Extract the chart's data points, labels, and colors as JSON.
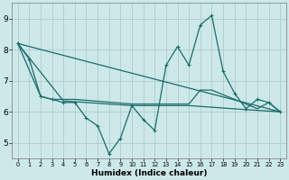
{
  "xlabel": "Humidex (Indice chaleur)",
  "background_color": "#cde8e8",
  "grid_color": "#aecccc",
  "line_color": "#1a6b6b",
  "xlim": [
    -0.5,
    23.5
  ],
  "ylim": [
    4.5,
    9.5
  ],
  "yticks": [
    5,
    6,
    7,
    8,
    9
  ],
  "xticks": [
    0,
    1,
    2,
    3,
    4,
    5,
    6,
    7,
    8,
    9,
    10,
    11,
    12,
    13,
    14,
    15,
    16,
    17,
    18,
    19,
    20,
    21,
    22,
    23
  ],
  "series1_x": [
    0,
    1,
    2,
    3,
    4,
    5,
    6,
    7,
    8,
    9,
    10,
    11,
    12,
    13,
    14,
    15,
    16,
    17,
    18,
    19,
    20,
    21,
    22,
    23
  ],
  "series1_y": [
    8.2,
    7.7,
    6.5,
    6.4,
    6.3,
    6.3,
    5.8,
    5.55,
    4.65,
    5.15,
    6.2,
    5.75,
    5.4,
    7.5,
    8.1,
    7.5,
    8.8,
    9.1,
    7.3,
    6.6,
    6.1,
    6.4,
    6.3,
    6.0
  ],
  "series2_x": [
    0,
    2,
    3,
    4,
    5,
    10,
    15,
    16,
    17,
    21,
    22,
    23
  ],
  "series2_y": [
    8.2,
    6.5,
    6.4,
    6.4,
    6.4,
    6.25,
    6.25,
    6.7,
    6.7,
    6.1,
    6.3,
    6.0
  ],
  "series3_x": [
    0,
    4,
    10,
    15,
    20,
    23
  ],
  "series3_y": [
    8.2,
    6.35,
    6.2,
    6.2,
    6.07,
    6.0
  ],
  "series4_x": [
    0,
    23
  ],
  "series4_y": [
    8.2,
    6.0
  ],
  "line_width": 0.9
}
